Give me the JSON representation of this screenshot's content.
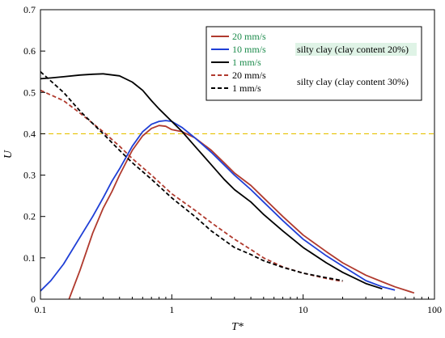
{
  "chart_data": {
    "type": "line",
    "x_scale": "log",
    "xlabel": "T*",
    "ylabel": "U",
    "xlim": [
      0.1,
      100
    ],
    "ylim": [
      0,
      0.7
    ],
    "x_ticks": [
      {
        "value": 0.1,
        "label": "0.1"
      },
      {
        "value": 1,
        "label": "1"
      },
      {
        "value": 10,
        "label": "10"
      },
      {
        "value": 100,
        "label": "100"
      }
    ],
    "y_ticks": [
      {
        "value": 0,
        "label": "0"
      },
      {
        "value": 0.1,
        "label": "0.1"
      },
      {
        "value": 0.2,
        "label": "0.2"
      },
      {
        "value": 0.3,
        "label": "0.3"
      },
      {
        "value": 0.4,
        "label": "0.4"
      },
      {
        "value": 0.5,
        "label": "0.5"
      },
      {
        "value": 0.6,
        "label": "0.6"
      },
      {
        "value": 0.7,
        "label": "0.7"
      }
    ],
    "grid": false,
    "legend_position": "top-right",
    "group_labels": [
      {
        "text": "silty clay (clay content 20%)",
        "color": "#1a8a4a",
        "background": "#dff3e6"
      },
      {
        "text": "silty clay (clay content 30%)",
        "color": "#000000",
        "background": "#ffffff"
      }
    ],
    "reference_lines": [
      {
        "orientation": "horizontal",
        "y": 0.4,
        "color": "#e6c200",
        "style": "dashed"
      }
    ],
    "series": [
      {
        "name": "20 mm/s",
        "color": "#b03a2e",
        "style": "solid",
        "group": "silty clay (clay content 20%)",
        "points": [
          [
            0.165,
            0.0
          ],
          [
            0.2,
            0.07
          ],
          [
            0.25,
            0.16
          ],
          [
            0.3,
            0.22
          ],
          [
            0.35,
            0.26
          ],
          [
            0.4,
            0.3
          ],
          [
            0.5,
            0.36
          ],
          [
            0.6,
            0.395
          ],
          [
            0.7,
            0.413
          ],
          [
            0.8,
            0.42
          ],
          [
            0.9,
            0.418
          ],
          [
            1.0,
            0.41
          ],
          [
            1.2,
            0.405
          ],
          [
            1.5,
            0.39
          ],
          [
            2.0,
            0.36
          ],
          [
            2.5,
            0.33
          ],
          [
            3.0,
            0.305
          ],
          [
            4.0,
            0.275
          ],
          [
            5.0,
            0.245
          ],
          [
            7.0,
            0.2
          ],
          [
            10.0,
            0.155
          ],
          [
            15.0,
            0.115
          ],
          [
            20.0,
            0.088
          ],
          [
            30.0,
            0.058
          ],
          [
            40.0,
            0.042
          ],
          [
            50.0,
            0.03
          ],
          [
            70.0,
            0.015
          ]
        ]
      },
      {
        "name": "10 mm/s",
        "color": "#1f3fd6",
        "style": "solid",
        "group": "silty clay (clay content 20%)",
        "points": [
          [
            0.1,
            0.02
          ],
          [
            0.12,
            0.045
          ],
          [
            0.15,
            0.085
          ],
          [
            0.2,
            0.15
          ],
          [
            0.25,
            0.2
          ],
          [
            0.3,
            0.245
          ],
          [
            0.35,
            0.285
          ],
          [
            0.4,
            0.315
          ],
          [
            0.5,
            0.37
          ],
          [
            0.6,
            0.405
          ],
          [
            0.7,
            0.423
          ],
          [
            0.8,
            0.43
          ],
          [
            0.9,
            0.432
          ],
          [
            1.0,
            0.43
          ],
          [
            1.2,
            0.415
          ],
          [
            1.5,
            0.39
          ],
          [
            2.0,
            0.355
          ],
          [
            2.5,
            0.325
          ],
          [
            3.0,
            0.3
          ],
          [
            4.0,
            0.265
          ],
          [
            5.0,
            0.235
          ],
          [
            7.0,
            0.19
          ],
          [
            10.0,
            0.145
          ],
          [
            15.0,
            0.105
          ],
          [
            20.0,
            0.08
          ],
          [
            30.0,
            0.045
          ],
          [
            40.0,
            0.03
          ],
          [
            50.0,
            0.022
          ]
        ]
      },
      {
        "name": "1 mm/s",
        "color": "#000000",
        "style": "solid",
        "group": "silty clay (clay content 20%)",
        "points": [
          [
            0.1,
            0.533
          ],
          [
            0.12,
            0.535
          ],
          [
            0.15,
            0.538
          ],
          [
            0.2,
            0.542
          ],
          [
            0.25,
            0.544
          ],
          [
            0.3,
            0.545
          ],
          [
            0.4,
            0.54
          ],
          [
            0.5,
            0.525
          ],
          [
            0.6,
            0.505
          ],
          [
            0.7,
            0.48
          ],
          [
            0.8,
            0.46
          ],
          [
            1.0,
            0.43
          ],
          [
            1.2,
            0.405
          ],
          [
            1.5,
            0.37
          ],
          [
            2.0,
            0.325
          ],
          [
            2.5,
            0.29
          ],
          [
            3.0,
            0.265
          ],
          [
            4.0,
            0.235
          ],
          [
            5.0,
            0.205
          ],
          [
            7.0,
            0.165
          ],
          [
            10.0,
            0.125
          ],
          [
            15.0,
            0.088
          ],
          [
            20.0,
            0.065
          ],
          [
            30.0,
            0.038
          ],
          [
            40.0,
            0.025
          ]
        ]
      },
      {
        "name": "20 mm/s",
        "color": "#b03a2e",
        "style": "dashed",
        "group": "silty clay (clay content 30%)",
        "points": [
          [
            0.1,
            0.505
          ],
          [
            0.15,
            0.48
          ],
          [
            0.2,
            0.45
          ],
          [
            0.3,
            0.405
          ],
          [
            0.4,
            0.37
          ],
          [
            0.5,
            0.34
          ],
          [
            0.7,
            0.3
          ],
          [
            1.0,
            0.255
          ],
          [
            1.5,
            0.215
          ],
          [
            2.0,
            0.185
          ],
          [
            3.0,
            0.145
          ],
          [
            4.0,
            0.12
          ],
          [
            5.0,
            0.1
          ],
          [
            7.0,
            0.078
          ],
          [
            10.0,
            0.063
          ],
          [
            15.0,
            0.05
          ],
          [
            20.0,
            0.043
          ]
        ]
      },
      {
        "name": "1 mm/s",
        "color": "#000000",
        "style": "dashed",
        "group": "silty clay (clay content 30%)",
        "points": [
          [
            0.1,
            0.55
          ],
          [
            0.15,
            0.5
          ],
          [
            0.2,
            0.455
          ],
          [
            0.3,
            0.4
          ],
          [
            0.4,
            0.36
          ],
          [
            0.5,
            0.33
          ],
          [
            0.7,
            0.29
          ],
          [
            1.0,
            0.245
          ],
          [
            1.5,
            0.2
          ],
          [
            2.0,
            0.165
          ],
          [
            3.0,
            0.125
          ],
          [
            4.0,
            0.108
          ],
          [
            5.0,
            0.093
          ],
          [
            7.0,
            0.077
          ],
          [
            10.0,
            0.063
          ],
          [
            15.0,
            0.052
          ],
          [
            20.0,
            0.045
          ]
        ]
      }
    ]
  }
}
